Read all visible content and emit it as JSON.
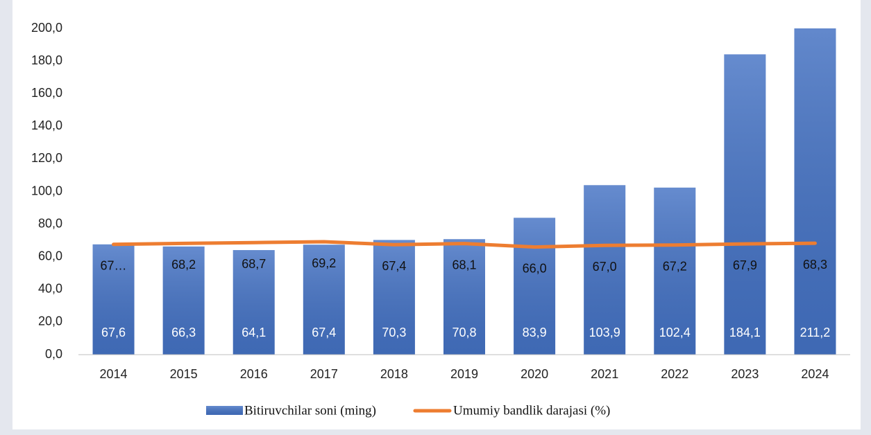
{
  "chart_data": {
    "type": "bar",
    "categories": [
      "2014",
      "2015",
      "2016",
      "2017",
      "2018",
      "2019",
      "2020",
      "2021",
      "2022",
      "2023",
      "2024"
    ],
    "series": [
      {
        "name": "Bitiruvchilar soni (ming)",
        "type": "bar",
        "color": "#4472c4",
        "values": [
          67.6,
          66.3,
          64.1,
          67.4,
          70.3,
          70.8,
          83.9,
          103.9,
          102.4,
          184.1,
          211.2
        ],
        "value_labels": [
          "67,6",
          "66,3",
          "64,1",
          "67,4",
          "70,3",
          "70,8",
          "83,9",
          "103,9",
          "102,4",
          "184,1",
          "211,2"
        ]
      },
      {
        "name": "Umumiy bandlik darajasi (%)",
        "type": "line",
        "color": "#ed7d31",
        "values": [
          67.6,
          68.2,
          68.7,
          69.2,
          67.4,
          68.1,
          66.0,
          67.0,
          67.2,
          67.9,
          68.3
        ],
        "value_labels": [
          "67…",
          "68,2",
          "68,7",
          "69,2",
          "67,4",
          "68,1",
          "66,0",
          "67,0",
          "67,2",
          "67,9",
          "68,3"
        ]
      }
    ],
    "ylim": [
      0,
      200
    ],
    "yticks": [
      {
        "value": 0,
        "label": "0,0"
      },
      {
        "value": 20,
        "label": "20,0"
      },
      {
        "value": 40,
        "label": "40,0"
      },
      {
        "value": 60,
        "label": "60,0"
      },
      {
        "value": 80,
        "label": "80,0"
      },
      {
        "value": 100,
        "label": "100,0"
      },
      {
        "value": 120,
        "label": "120,0"
      },
      {
        "value": 140,
        "label": "140,0"
      },
      {
        "value": 160,
        "label": "160,0"
      },
      {
        "value": 180,
        "label": "180,0"
      },
      {
        "value": 200,
        "label": "200,0"
      }
    ],
    "grid": false,
    "legend": "bottom"
  }
}
